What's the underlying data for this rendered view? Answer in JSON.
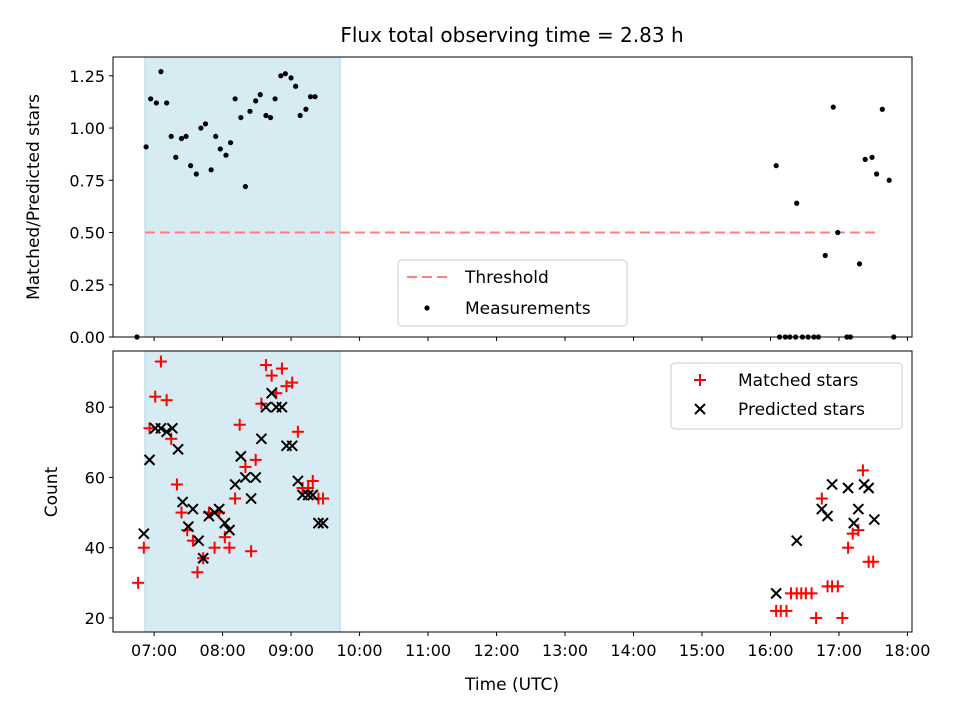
{
  "title": "Flux total observing time = 2.83 h",
  "colors": {
    "highlight": "#add8e6",
    "threshold": "#ff7f7f",
    "matched": "#ff0000",
    "predicted": "#000000",
    "measurement": "#000000"
  },
  "chart_data": [
    {
      "type": "scatter",
      "title": "Flux total observing time = 2.83 h",
      "xlabel": "",
      "ylabel": "Matched/Predicted stars",
      "xlim": [
        "06:24",
        "18:04"
      ],
      "ylim": [
        0,
        1.34
      ],
      "yticks": [
        0.0,
        0.25,
        0.5,
        0.75,
        1.0,
        1.25
      ],
      "ytick_labels": [
        "0.00",
        "0.25",
        "0.50",
        "0.75",
        "1.00",
        "1.25"
      ],
      "grid": false,
      "legend_position": "lower-center",
      "highlight_span": [
        "06:52",
        "09:43"
      ],
      "threshold": {
        "name": "Threshold",
        "y": 0.5,
        "x": [
          "06:52",
          "17:35"
        ]
      },
      "series": [
        {
          "name": "Measurements",
          "marker": "dot",
          "points": [
            [
              "06:45",
              0.0
            ],
            [
              "06:53",
              0.91
            ],
            [
              "06:57",
              1.14
            ],
            [
              "07:02",
              1.12
            ],
            [
              "07:06",
              1.27
            ],
            [
              "07:11",
              1.12
            ],
            [
              "07:15",
              0.96
            ],
            [
              "07:19",
              0.86
            ],
            [
              "07:24",
              0.95
            ],
            [
              "07:28",
              0.96
            ],
            [
              "07:32",
              0.82
            ],
            [
              "07:37",
              0.78
            ],
            [
              "07:41",
              1.0
            ],
            [
              "07:45",
              1.02
            ],
            [
              "07:50",
              0.8
            ],
            [
              "07:54",
              0.96
            ],
            [
              "07:58",
              0.9
            ],
            [
              "08:03",
              0.87
            ],
            [
              "08:07",
              0.93
            ],
            [
              "08:11",
              1.14
            ],
            [
              "08:16",
              1.05
            ],
            [
              "08:20",
              0.72
            ],
            [
              "08:24",
              1.08
            ],
            [
              "08:29",
              1.13
            ],
            [
              "08:33",
              1.16
            ],
            [
              "08:38",
              1.06
            ],
            [
              "08:42",
              1.05
            ],
            [
              "08:46",
              1.14
            ],
            [
              "08:51",
              1.25
            ],
            [
              "08:55",
              1.26
            ],
            [
              "09:00",
              1.24
            ],
            [
              "09:04",
              1.2
            ],
            [
              "09:08",
              1.06
            ],
            [
              "09:13",
              1.09
            ],
            [
              "09:17",
              1.15
            ],
            [
              "09:21",
              1.15
            ],
            [
              "16:05",
              0.82
            ],
            [
              "16:08",
              0.0
            ],
            [
              "16:13",
              0.0
            ],
            [
              "16:17",
              0.0
            ],
            [
              "16:22",
              0.0
            ],
            [
              "16:23",
              0.64
            ],
            [
              "16:28",
              0.0
            ],
            [
              "16:33",
              0.0
            ],
            [
              "16:38",
              0.0
            ],
            [
              "16:42",
              0.0
            ],
            [
              "16:48",
              0.39
            ],
            [
              "16:55",
              1.1
            ],
            [
              "16:59",
              0.5
            ],
            [
              "17:07",
              0.0
            ],
            [
              "17:10",
              0.0
            ],
            [
              "17:18",
              0.35
            ],
            [
              "17:23",
              0.85
            ],
            [
              "17:29",
              0.86
            ],
            [
              "17:33",
              0.78
            ],
            [
              "17:38",
              1.09
            ],
            [
              "17:44",
              0.75
            ],
            [
              "17:48",
              0.0
            ]
          ]
        }
      ]
    },
    {
      "type": "scatter",
      "title": "",
      "xlabel": "Time (UTC)",
      "ylabel": "Count",
      "xlim": [
        "06:24",
        "18:04"
      ],
      "ylim": [
        16,
        96
      ],
      "yticks": [
        20,
        40,
        60,
        80
      ],
      "xticks": [
        "07:00",
        "08:00",
        "09:00",
        "10:00",
        "11:00",
        "12:00",
        "13:00",
        "14:00",
        "15:00",
        "16:00",
        "17:00",
        "18:00"
      ],
      "grid": false,
      "legend_position": "upper-right",
      "highlight_span": [
        "06:52",
        "09:43"
      ],
      "series": [
        {
          "name": "Matched stars",
          "marker": "plus",
          "points": [
            [
              "06:46",
              30
            ],
            [
              "06:51",
              40
            ],
            [
              "06:56",
              74
            ],
            [
              "07:01",
              83
            ],
            [
              "07:06",
              93
            ],
            [
              "07:11",
              82
            ],
            [
              "07:15",
              71
            ],
            [
              "07:20",
              58
            ],
            [
              "07:24",
              50
            ],
            [
              "07:29",
              45
            ],
            [
              "07:34",
              42
            ],
            [
              "07:38",
              33
            ],
            [
              "07:43",
              37
            ],
            [
              "07:48",
              50
            ],
            [
              "07:53",
              40
            ],
            [
              "07:57",
              50
            ],
            [
              "08:02",
              43
            ],
            [
              "08:06",
              40
            ],
            [
              "08:11",
              54
            ],
            [
              "08:15",
              75
            ],
            [
              "08:20",
              63
            ],
            [
              "08:25",
              39
            ],
            [
              "08:29",
              65
            ],
            [
              "08:34",
              81
            ],
            [
              "08:38",
              92
            ],
            [
              "08:43",
              89
            ],
            [
              "08:47",
              84
            ],
            [
              "08:52",
              91
            ],
            [
              "08:56",
              86
            ],
            [
              "09:01",
              87
            ],
            [
              "09:06",
              73
            ],
            [
              "09:10",
              57
            ],
            [
              "09:15",
              57
            ],
            [
              "09:19",
              59
            ],
            [
              "09:24",
              54
            ],
            [
              "09:28",
              54
            ],
            [
              "16:05",
              22
            ],
            [
              "16:09",
              22
            ],
            [
              "16:14",
              22
            ],
            [
              "16:18",
              27
            ],
            [
              "16:23",
              27
            ],
            [
              "16:27",
              27
            ],
            [
              "16:31",
              27
            ],
            [
              "16:36",
              27
            ],
            [
              "16:40",
              20
            ],
            [
              "16:45",
              54
            ],
            [
              "16:50",
              29
            ],
            [
              "16:54",
              29
            ],
            [
              "16:59",
              29
            ],
            [
              "17:03",
              20
            ],
            [
              "17:08",
              40
            ],
            [
              "17:12",
              44
            ],
            [
              "17:17",
              45
            ],
            [
              "17:21",
              62
            ],
            [
              "17:26",
              36
            ],
            [
              "17:30",
              36
            ]
          ]
        },
        {
          "name": "Predicted stars",
          "marker": "x",
          "points": [
            [
              "06:51",
              44
            ],
            [
              "06:56",
              65
            ],
            [
              "07:01",
              74
            ],
            [
              "07:06",
              74
            ],
            [
              "07:11",
              73
            ],
            [
              "07:16",
              74
            ],
            [
              "07:21",
              68
            ],
            [
              "07:25",
              53
            ],
            [
              "07:30",
              46
            ],
            [
              "07:34",
              51
            ],
            [
              "07:39",
              42
            ],
            [
              "07:43",
              37
            ],
            [
              "07:48",
              49
            ],
            [
              "07:53",
              50
            ],
            [
              "07:57",
              51
            ],
            [
              "08:02",
              47
            ],
            [
              "08:06",
              45
            ],
            [
              "08:11",
              58
            ],
            [
              "08:16",
              66
            ],
            [
              "08:20",
              60
            ],
            [
              "08:25",
              54
            ],
            [
              "08:29",
              60
            ],
            [
              "08:34",
              71
            ],
            [
              "08:38",
              80
            ],
            [
              "08:43",
              84
            ],
            [
              "08:47",
              80
            ],
            [
              "08:52",
              80
            ],
            [
              "08:56",
              69
            ],
            [
              "09:01",
              69
            ],
            [
              "09:06",
              59
            ],
            [
              "09:10",
              55
            ],
            [
              "09:15",
              55
            ],
            [
              "09:19",
              55
            ],
            [
              "09:24",
              47
            ],
            [
              "09:28",
              47
            ],
            [
              "16:05",
              27
            ],
            [
              "16:23",
              42
            ],
            [
              "16:45",
              51
            ],
            [
              "16:50",
              49
            ],
            [
              "16:54",
              58
            ],
            [
              "17:08",
              57
            ],
            [
              "17:13",
              47
            ],
            [
              "17:17",
              51
            ],
            [
              "17:22",
              58
            ],
            [
              "17:26",
              57
            ],
            [
              "17:31",
              48
            ]
          ]
        }
      ]
    }
  ]
}
